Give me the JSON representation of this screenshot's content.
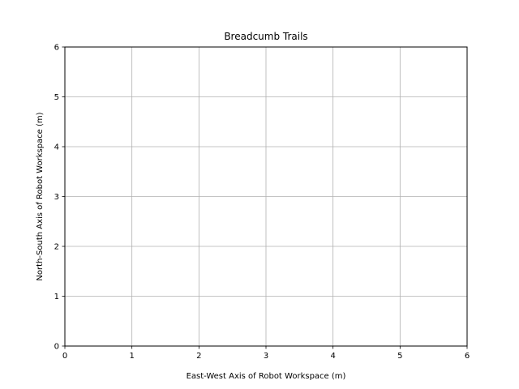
{
  "chart_data": {
    "type": "line",
    "title": "Breadcumb Trails",
    "xlabel": "East-West Axis of Robot Workspace (m)",
    "ylabel": "North-South Axis of Robot Workspace (m)",
    "xlim": [
      0,
      6
    ],
    "ylim": [
      0,
      6
    ],
    "xticks": [
      0,
      1,
      2,
      3,
      4,
      5,
      6
    ],
    "yticks": [
      0,
      1,
      2,
      3,
      4,
      5,
      6
    ],
    "xtick_labels": [
      "0",
      "1",
      "2",
      "3",
      "4",
      "5",
      "6"
    ],
    "ytick_labels": [
      "0",
      "1",
      "2",
      "3",
      "4",
      "5",
      "6"
    ],
    "grid": true,
    "series": []
  },
  "colors": {
    "grid": "#b0b0b0",
    "axes": "#000000",
    "background": "#ffffff"
  }
}
